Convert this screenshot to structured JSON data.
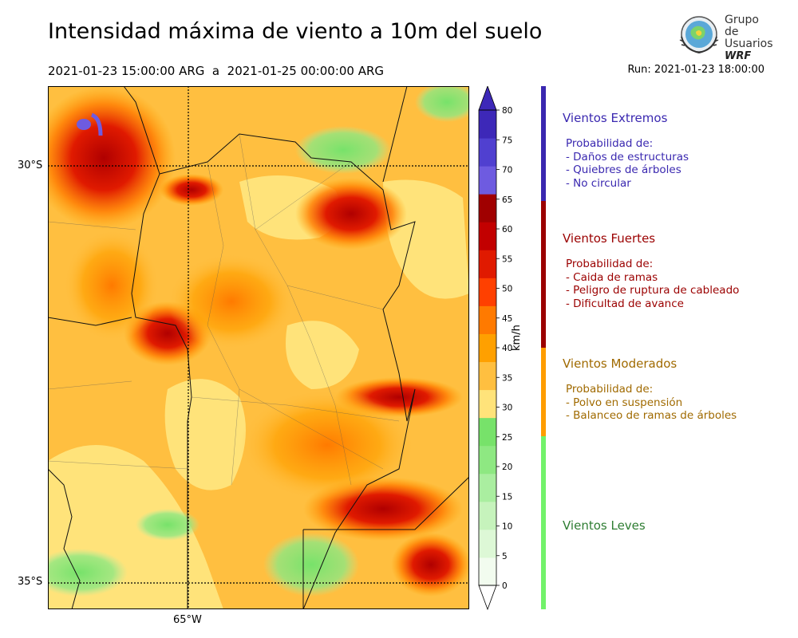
{
  "title": "Intensidad máxima de viento a 10m del suelo",
  "period": "2021-01-23 15:00:00 ARG  a  2021-01-25 00:00:00 ARG",
  "run": "Run: 2021-01-23 18:00:00",
  "logo": {
    "line1": "Grupo de",
    "line2": "Usuarios",
    "line3": "WRF"
  },
  "axes": {
    "lat_labels": [
      "30°S",
      "35°S"
    ],
    "lon_labels": [
      "65°W"
    ]
  },
  "colorbar": {
    "unit": "km/h",
    "ticks": [
      0,
      5,
      10,
      15,
      20,
      25,
      30,
      35,
      40,
      45,
      50,
      55,
      60,
      65,
      70,
      75,
      80
    ],
    "colors": [
      "#f2fcef",
      "#ddf8d6",
      "#c6f3bc",
      "#aaeea0",
      "#8ee882",
      "#77e26a",
      "#ffe37a",
      "#ffbf40",
      "#ffa000",
      "#ff7a00",
      "#ff4000",
      "#e01a00",
      "#c20000",
      "#a00000",
      "#6e5be0",
      "#5040d0",
      "#3d28b8"
    ]
  },
  "categories": [
    {
      "name": "Vientos Extremos",
      "color": "#3a28b0",
      "bar": "#3a28b0",
      "lines": [
        "Probabilidad de:",
        "- Daños de estructuras",
        "- Quiebres de árboles",
        "- No circular"
      ]
    },
    {
      "name": "Vientos Fuertes",
      "color": "#9b0000",
      "bar": "#9b0000",
      "lines": [
        "Probabilidad de:",
        "- Caida de ramas",
        "- Peligro de ruptura de cableado",
        "- Dificultad de avance"
      ]
    },
    {
      "name": "Vientos Moderados",
      "color": "#a06a00",
      "bar": "#ff9d00",
      "lines": [
        "Probabilidad de:",
        "- Polvo en suspensión",
        "- Balanceo de ramas de árboles"
      ]
    },
    {
      "name": "Vientos Leves",
      "color": "#2e7d32",
      "bar": "#72f26a",
      "lines": []
    }
  ]
}
